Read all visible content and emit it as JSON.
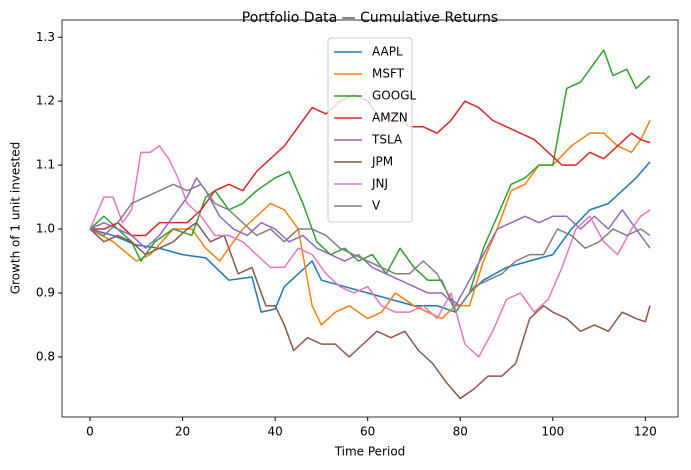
{
  "chart_data": {
    "type": "line",
    "title": "Portfolio Data — Cumulative Returns",
    "x_label": "Time Period",
    "y_label": "Growth of 1 unit invested",
    "xlim": [
      -6.05,
      127.05
    ],
    "ylim": [
      0.706,
      1.327
    ],
    "xticks": [
      0,
      20,
      40,
      60,
      80,
      100,
      120
    ],
    "yticks": [
      0.8,
      0.9,
      {
        "value": 1,
        "label": "1.0"
      },
      1.1,
      1.2,
      1.3
    ],
    "grid": false,
    "legend": "upper center",
    "series": [
      {
        "name": "AAPL",
        "color": "#1f77b4",
        "x": [
          0,
          5,
          10,
          15,
          20,
          25,
          30,
          35,
          37,
          40,
          42,
          45,
          48,
          50,
          55,
          60,
          65,
          70,
          75,
          79,
          82,
          85,
          90,
          95,
          100,
          104,
          108,
          112,
          115,
          118,
          121
        ],
        "values": [
          1.0,
          0.99,
          0.975,
          0.97,
          0.96,
          0.955,
          0.92,
          0.925,
          0.87,
          0.875,
          0.91,
          0.93,
          0.95,
          0.92,
          0.91,
          0.9,
          0.89,
          0.88,
          0.88,
          0.87,
          0.9,
          0.92,
          0.94,
          0.95,
          0.96,
          1.0,
          1.03,
          1.04,
          1.06,
          1.08,
          1.105
        ]
      },
      {
        "name": "MSFT",
        "color": "#ff7f0e",
        "x": [
          0,
          5,
          10,
          13,
          18,
          22,
          25,
          28,
          30,
          33,
          36,
          39,
          42,
          45,
          48,
          50,
          53,
          56,
          60,
          63,
          66,
          70,
          73,
          76,
          79,
          82,
          85,
          88,
          91,
          94,
          97,
          100,
          104,
          108,
          111,
          114,
          117,
          119,
          121
        ],
        "values": [
          1.0,
          0.98,
          0.95,
          0.96,
          1.0,
          1.0,
          0.97,
          0.95,
          0.97,
          1.0,
          1.02,
          1.04,
          1.03,
          1.0,
          0.88,
          0.85,
          0.87,
          0.88,
          0.86,
          0.87,
          0.9,
          0.88,
          0.87,
          0.86,
          0.88,
          0.88,
          0.95,
          1.0,
          1.06,
          1.07,
          1.1,
          1.1,
          1.13,
          1.15,
          1.15,
          1.13,
          1.12,
          1.14,
          1.17
        ]
      },
      {
        "name": "GOOGL",
        "color": "#2ca02c",
        "x": [
          0,
          3,
          6,
          9,
          11,
          14,
          18,
          22,
          25,
          27,
          30,
          33,
          36,
          40,
          43,
          46,
          49,
          52,
          55,
          58,
          61,
          64,
          67,
          70,
          73,
          76,
          79,
          82,
          85,
          88,
          91,
          94,
          97,
          100,
          103,
          106,
          109,
          111,
          113,
          116,
          118,
          121
        ],
        "values": [
          1.0,
          1.02,
          1.0,
          0.98,
          0.95,
          0.98,
          1.0,
          0.99,
          1.05,
          1.06,
          1.03,
          1.04,
          1.06,
          1.08,
          1.09,
          1.04,
          0.98,
          0.96,
          0.97,
          0.95,
          0.96,
          0.93,
          0.97,
          0.94,
          0.92,
          0.92,
          0.87,
          0.9,
          0.97,
          1.02,
          1.07,
          1.08,
          1.1,
          1.1,
          1.22,
          1.23,
          1.26,
          1.28,
          1.24,
          1.25,
          1.22,
          1.24
        ]
      },
      {
        "name": "AMZN",
        "color": "#d62728",
        "x": [
          0,
          3,
          6,
          9,
          12,
          15,
          18,
          21,
          24,
          27,
          30,
          33,
          36,
          39,
          42,
          45,
          48,
          51,
          54,
          57,
          60,
          63,
          66,
          69,
          72,
          75,
          78,
          81,
          84,
          87,
          90,
          93,
          96,
          99,
          102,
          105,
          108,
          111,
          114,
          117,
          119,
          121
        ],
        "values": [
          1.0,
          1.0,
          1.01,
          0.99,
          0.99,
          1.01,
          1.01,
          1.01,
          1.03,
          1.06,
          1.07,
          1.06,
          1.09,
          1.11,
          1.13,
          1.16,
          1.19,
          1.18,
          1.2,
          1.21,
          1.2,
          1.17,
          1.18,
          1.16,
          1.16,
          1.15,
          1.17,
          1.2,
          1.19,
          1.17,
          1.16,
          1.15,
          1.14,
          1.12,
          1.1,
          1.1,
          1.12,
          1.11,
          1.13,
          1.15,
          1.14,
          1.135
        ]
      },
      {
        "name": "TSLA",
        "color": "#9467bd",
        "x": [
          0,
          3,
          6,
          9,
          12,
          15,
          18,
          21,
          23,
          25,
          28,
          31,
          34,
          37,
          40,
          43,
          46,
          49,
          52,
          55,
          58,
          61,
          64,
          67,
          70,
          73,
          76,
          79,
          82,
          85,
          88,
          91,
          94,
          97,
          100,
          103,
          106,
          109,
          112,
          115,
          118,
          121
        ],
        "values": [
          1.0,
          1.01,
          1.0,
          0.99,
          0.97,
          0.99,
          1.02,
          1.05,
          1.08,
          1.06,
          1.02,
          1.0,
          0.99,
          1.01,
          1.0,
          0.98,
          0.99,
          0.97,
          0.96,
          0.95,
          0.96,
          0.94,
          0.93,
          0.92,
          0.91,
          0.9,
          0.9,
          0.88,
          0.92,
          0.96,
          1.0,
          1.01,
          1.02,
          1.01,
          1.02,
          1.02,
          1.0,
          1.02,
          1.0,
          1.03,
          1.0,
          0.97
        ]
      },
      {
        "name": "JPM",
        "color": "#8c564b",
        "x": [
          0,
          3,
          6,
          9,
          12,
          15,
          18,
          21,
          23,
          26,
          29,
          32,
          35,
          38,
          40,
          42,
          44,
          47,
          50,
          53,
          56,
          59,
          62,
          65,
          68,
          71,
          74,
          77,
          80,
          83,
          86,
          89,
          92,
          95,
          98,
          100,
          103,
          106,
          109,
          112,
          115,
          118,
          120,
          121
        ],
        "values": [
          1.0,
          0.98,
          0.99,
          0.98,
          0.96,
          0.97,
          0.98,
          1.0,
          1.01,
          0.98,
          0.99,
          0.93,
          0.94,
          0.88,
          0.88,
          0.85,
          0.81,
          0.83,
          0.82,
          0.82,
          0.8,
          0.82,
          0.84,
          0.83,
          0.84,
          0.81,
          0.79,
          0.76,
          0.735,
          0.75,
          0.77,
          0.77,
          0.79,
          0.86,
          0.88,
          0.87,
          0.86,
          0.84,
          0.85,
          0.84,
          0.87,
          0.86,
          0.855,
          0.88
        ]
      },
      {
        "name": "JNJ",
        "color": "#e377c2",
        "x": [
          0,
          3,
          5,
          7,
          9,
          11,
          13,
          15,
          17,
          19,
          21,
          24,
          27,
          30,
          33,
          36,
          39,
          42,
          45,
          48,
          51,
          54,
          57,
          60,
          63,
          66,
          69,
          72,
          75,
          78,
          81,
          84,
          87,
          90,
          93,
          96,
          99,
          102,
          105,
          108,
          111,
          114,
          117,
          119,
          121
        ],
        "values": [
          1.0,
          1.05,
          1.05,
          1.01,
          1.03,
          1.12,
          1.12,
          1.13,
          1.11,
          1.08,
          1.04,
          1.02,
          0.99,
          0.99,
          0.98,
          0.96,
          0.94,
          0.94,
          0.97,
          0.96,
          0.93,
          0.91,
          0.9,
          0.91,
          0.88,
          0.87,
          0.87,
          0.88,
          0.86,
          0.9,
          0.82,
          0.8,
          0.84,
          0.89,
          0.9,
          0.87,
          0.89,
          0.94,
          1.0,
          1.02,
          0.98,
          0.96,
          1.0,
          1.02,
          1.03
        ]
      },
      {
        "name": "V",
        "color": "#7f7f7f",
        "x": [
          0,
          3,
          6,
          9,
          12,
          15,
          18,
          21,
          24,
          27,
          30,
          33,
          36,
          39,
          42,
          45,
          48,
          51,
          54,
          57,
          60,
          63,
          66,
          69,
          72,
          75,
          78,
          80,
          83,
          86,
          89,
          92,
          95,
          98,
          101,
          104,
          107,
          110,
          113,
          116,
          119,
          121
        ],
        "values": [
          1.0,
          0.99,
          1.01,
          1.04,
          1.05,
          1.06,
          1.07,
          1.06,
          1.07,
          1.04,
          1.03,
          1.01,
          0.99,
          1.0,
          0.98,
          1.0,
          1.0,
          0.99,
          0.97,
          0.96,
          0.95,
          0.94,
          0.93,
          0.93,
          0.95,
          0.93,
          0.89,
          0.88,
          0.91,
          0.92,
          0.93,
          0.95,
          0.96,
          0.96,
          1.0,
          0.99,
          0.97,
          0.98,
          1.0,
          0.99,
          1.0,
          0.99
        ]
      }
    ]
  }
}
